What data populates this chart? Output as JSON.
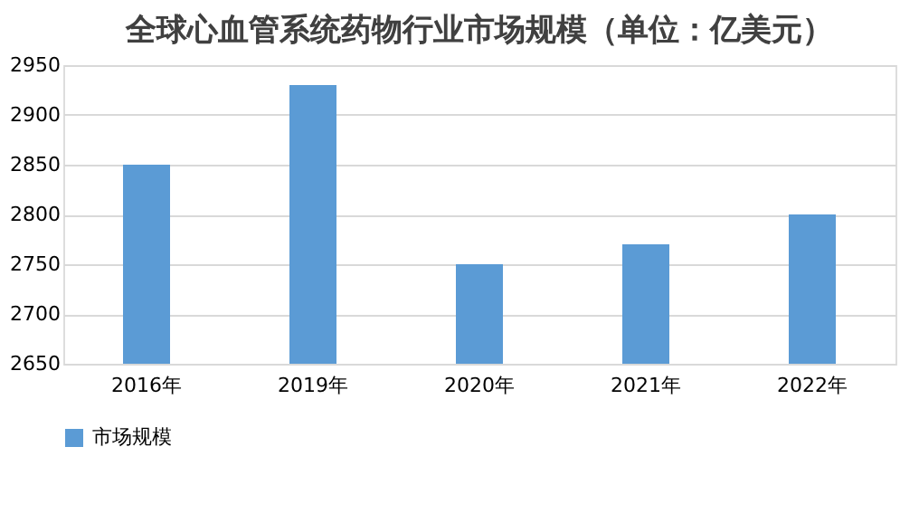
{
  "chart_data": {
    "type": "bar",
    "title": "全球心血管系统药物行业市场规模（单位：亿美元）",
    "categories": [
      "2016年",
      "2019年",
      "2020年",
      "2021年",
      "2022年"
    ],
    "series": [
      {
        "name": "市场规模",
        "color": "#5b9bd5",
        "values": [
          2850,
          2930,
          2750,
          2770,
          2800
        ]
      }
    ],
    "ylim": [
      2650,
      2950
    ],
    "yticks": [
      2650,
      2700,
      2750,
      2800,
      2850,
      2900,
      2950
    ],
    "grid": "y",
    "legend": "bottom"
  }
}
